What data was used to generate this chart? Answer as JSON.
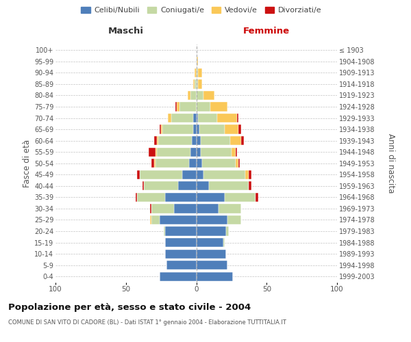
{
  "age_groups": [
    "0-4",
    "5-9",
    "10-14",
    "15-19",
    "20-24",
    "25-29",
    "30-34",
    "35-39",
    "40-44",
    "45-49",
    "50-54",
    "55-59",
    "60-64",
    "65-69",
    "70-74",
    "75-79",
    "80-84",
    "85-89",
    "90-94",
    "95-99",
    "100+"
  ],
  "birth_years": [
    "1999-2003",
    "1994-1998",
    "1989-1993",
    "1984-1988",
    "1979-1983",
    "1974-1978",
    "1969-1973",
    "1964-1968",
    "1959-1963",
    "1954-1958",
    "1949-1953",
    "1944-1948",
    "1939-1943",
    "1934-1938",
    "1929-1933",
    "1924-1928",
    "1919-1923",
    "1914-1918",
    "1909-1913",
    "1904-1908",
    "≤ 1903"
  ],
  "male": {
    "celibi": [
      26,
      21,
      22,
      22,
      22,
      26,
      16,
      22,
      13,
      10,
      5,
      4,
      3,
      2,
      2,
      0,
      0,
      0,
      0,
      0,
      0
    ],
    "coniugati": [
      0,
      0,
      0,
      0,
      1,
      6,
      16,
      20,
      24,
      30,
      24,
      24,
      24,
      22,
      16,
      12,
      4,
      1,
      0,
      0,
      0
    ],
    "vedovi": [
      0,
      0,
      0,
      0,
      0,
      1,
      0,
      0,
      0,
      0,
      1,
      1,
      1,
      1,
      2,
      2,
      2,
      1,
      1,
      0,
      0
    ],
    "divorziati": [
      0,
      0,
      0,
      0,
      0,
      0,
      1,
      1,
      1,
      2,
      2,
      5,
      2,
      1,
      0,
      1,
      0,
      0,
      0,
      0,
      0
    ]
  },
  "female": {
    "nubili": [
      26,
      22,
      21,
      19,
      21,
      22,
      16,
      20,
      9,
      5,
      4,
      3,
      3,
      2,
      1,
      0,
      0,
      0,
      0,
      0,
      0
    ],
    "coniugate": [
      0,
      0,
      0,
      1,
      2,
      10,
      16,
      22,
      28,
      30,
      24,
      22,
      21,
      18,
      14,
      10,
      5,
      1,
      1,
      0,
      0
    ],
    "vedove": [
      0,
      0,
      0,
      0,
      0,
      0,
      0,
      0,
      0,
      2,
      2,
      3,
      8,
      10,
      14,
      12,
      8,
      3,
      3,
      1,
      0
    ],
    "divorziate": [
      0,
      0,
      0,
      0,
      0,
      0,
      0,
      2,
      2,
      2,
      1,
      1,
      2,
      2,
      1,
      0,
      0,
      0,
      0,
      0,
      0
    ]
  },
  "colors": {
    "celibi_nubili": "#4f7fba",
    "coniugati": "#c5d9a4",
    "vedovi": "#fac858",
    "divorziati": "#cc1111"
  },
  "xlim": 100,
  "title": "Popolazione per età, sesso e stato civile - 2004",
  "subtitle": "COMUNE DI SAN VITO DI CADORE (BL) - Dati ISTAT 1° gennaio 2004 - Elaborazione TUTTITALIA.IT",
  "ylabel_left": "Fasce di età",
  "ylabel_right": "Anni di nascita",
  "xlabel_left": "Maschi",
  "xlabel_right": "Femmine",
  "bg_color": "#ffffff",
  "grid_color": "#bbbbbb"
}
